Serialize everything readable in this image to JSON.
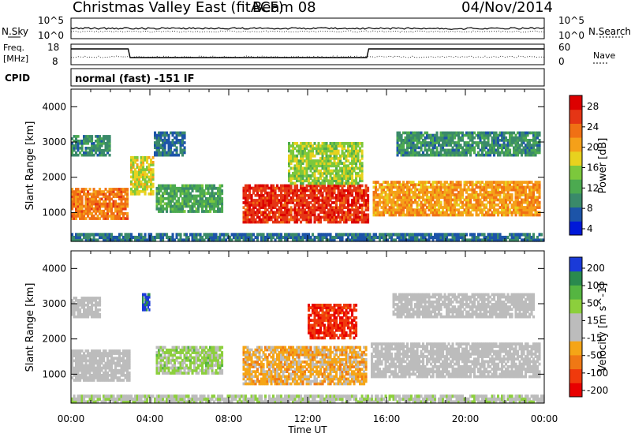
{
  "header": {
    "title": "Christmas Valley East (fitACF)",
    "beam": "Beam 08",
    "date": "04/Nov/2014"
  },
  "status_panels": {
    "nsky_label": "N.Sky",
    "nsearch_label": "N.Search",
    "noise_ticks": [
      "10^5",
      "10^0"
    ],
    "freq_label_line1": "Freq.",
    "freq_label_line2": "[MHz]",
    "freq_ticks": [
      "18",
      "8"
    ],
    "nave_label": "Nave",
    "nave_ticks": [
      "60",
      "0"
    ],
    "cpid_label": "CPID",
    "cpid_value": "normal (fast) -151 IF"
  },
  "chart_data": [
    {
      "type": "heatmap",
      "title": "Power",
      "ylabel": "Slant Range [km]",
      "xlabel": "",
      "colorbar_label": "Power [dB]",
      "x_ticks": [
        "00:00",
        "04:00",
        "08:00",
        "12:00",
        "16:00",
        "20:00",
        "00:00"
      ],
      "xlim_hours": [
        0,
        24
      ],
      "ylim_km": [
        180,
        4500
      ],
      "y_ticks": [
        1000,
        2000,
        3000,
        4000
      ],
      "colorbar_ticks": [
        "28",
        "24",
        "20",
        "16",
        "12",
        "8",
        "4"
      ],
      "colorbar_range": [
        0,
        30
      ],
      "colors": [
        "#0018d8",
        "#1c54a8",
        "#3a8a6a",
        "#4caa50",
        "#7cc83c",
        "#e8d21e",
        "#f5a019",
        "#f07014",
        "#e53515",
        "#dc0000"
      ],
      "echo_regions": [
        {
          "x0": 0.0,
          "x1": 2.9,
          "y0": 800,
          "y1": 1700,
          "value": 22
        },
        {
          "x0": 0.0,
          "x1": 2.0,
          "y0": 2600,
          "y1": 3200,
          "value": 8
        },
        {
          "x0": 3.0,
          "x1": 4.2,
          "y0": 1500,
          "y1": 2600,
          "value": 16
        },
        {
          "x0": 4.2,
          "x1": 5.8,
          "y0": 2600,
          "y1": 3300,
          "value": 6
        },
        {
          "x0": 4.3,
          "x1": 7.7,
          "y0": 1000,
          "y1": 1800,
          "value": 10
        },
        {
          "x0": 8.7,
          "x1": 15.1,
          "y0": 700,
          "y1": 1800,
          "value": 26
        },
        {
          "x0": 11.0,
          "x1": 14.8,
          "y0": 1800,
          "y1": 3000,
          "value": 14
        },
        {
          "x0": 15.3,
          "x1": 23.8,
          "y0": 900,
          "y1": 1900,
          "value": 20
        },
        {
          "x0": 16.5,
          "x1": 23.8,
          "y0": 2600,
          "y1": 3300,
          "value": 8
        },
        {
          "x0": 0.0,
          "x1": 24.0,
          "y0": 180,
          "y1": 420,
          "value": 6
        }
      ]
    },
    {
      "type": "heatmap",
      "title": "Velocity",
      "ylabel": "Slant Range [km]",
      "xlabel": "Time UT",
      "colorbar_label": "Velocity [m s^-1]",
      "x_ticks": [
        "00:00",
        "04:00",
        "08:00",
        "12:00",
        "16:00",
        "20:00",
        "00:00"
      ],
      "xlim_hours": [
        0,
        24
      ],
      "ylim_km": [
        180,
        4500
      ],
      "y_ticks": [
        1000,
        2000,
        3000,
        4000
      ],
      "colorbar_ticks": [
        "200",
        "100",
        "50",
        "15",
        "-15",
        "-50",
        "-100",
        "-200"
      ],
      "colorbar_range": [
        -250,
        250
      ],
      "colors": [
        "#e80000",
        "#f03a0c",
        "#f07814",
        "#f5a516",
        "#bcbcbc",
        "#bcbcbc",
        "#8ccf3c",
        "#55b541",
        "#2a8a4e",
        "#1a3ad8"
      ],
      "echo_regions": [
        {
          "x0": 0.0,
          "x1": 3.0,
          "y0": 800,
          "y1": 1700,
          "value": 0
        },
        {
          "x0": 0.0,
          "x1": 1.5,
          "y0": 2600,
          "y1": 3200,
          "value": 0
        },
        {
          "x0": 3.6,
          "x1": 4.0,
          "y0": 2800,
          "y1": 3300,
          "value": 220
        },
        {
          "x0": 4.3,
          "x1": 7.7,
          "y0": 1000,
          "y1": 1800,
          "value": 60
        },
        {
          "x0": 8.7,
          "x1": 15.0,
          "y0": 700,
          "y1": 1800,
          "value": -70
        },
        {
          "x0": 12.0,
          "x1": 14.5,
          "y0": 2000,
          "y1": 3000,
          "value": -190
        },
        {
          "x0": 15.2,
          "x1": 23.8,
          "y0": 900,
          "y1": 1900,
          "value": 0
        },
        {
          "x0": 16.3,
          "x1": 23.5,
          "y0": 2600,
          "y1": 3300,
          "value": 0
        },
        {
          "x0": 0.0,
          "x1": 24.0,
          "y0": 180,
          "y1": 420,
          "value": 30
        }
      ]
    }
  ]
}
